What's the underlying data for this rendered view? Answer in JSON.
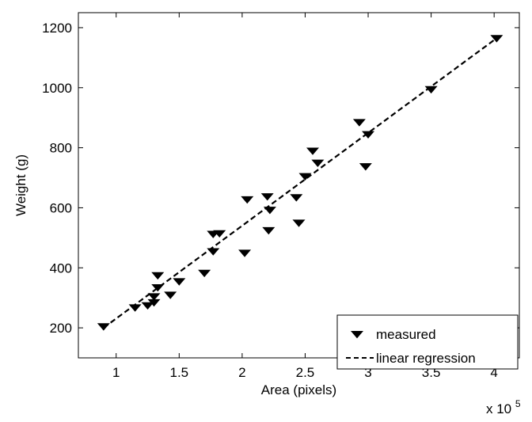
{
  "chart_data": {
    "type": "scatter",
    "xlabel": "Area (pixels)",
    "ylabel": "Weight (g)",
    "x_multiplier_label": "x 10",
    "x_multiplier_exponent": "5",
    "xlim": [
      0.7,
      4.2
    ],
    "ylim": [
      100,
      1250
    ],
    "xticks": [
      1,
      1.5,
      2,
      2.5,
      3,
      3.5,
      4
    ],
    "xtick_labels": [
      "1",
      "1.5",
      "2",
      "2.5",
      "3",
      "3.5",
      "4"
    ],
    "yticks": [
      200,
      400,
      600,
      800,
      1000,
      1200
    ],
    "ytick_labels": [
      "200",
      "400",
      "600",
      "800",
      "1000",
      "1200"
    ],
    "grid": false,
    "legend_position": "bottom-right",
    "series": [
      {
        "name": "measured",
        "marker": "triangle-down",
        "color": "#000000",
        "points": [
          [
            0.9,
            205
          ],
          [
            1.15,
            268
          ],
          [
            1.25,
            275
          ],
          [
            1.3,
            285
          ],
          [
            1.3,
            305
          ],
          [
            1.33,
            335
          ],
          [
            1.33,
            375
          ],
          [
            1.43,
            310
          ],
          [
            1.5,
            355
          ],
          [
            1.7,
            383
          ],
          [
            1.77,
            455
          ],
          [
            1.77,
            513
          ],
          [
            1.82,
            515
          ],
          [
            2.02,
            450
          ],
          [
            2.04,
            628
          ],
          [
            2.2,
            638
          ],
          [
            2.21,
            525
          ],
          [
            2.22,
            593
          ],
          [
            2.43,
            635
          ],
          [
            2.45,
            550
          ],
          [
            2.5,
            705
          ],
          [
            2.56,
            790
          ],
          [
            2.6,
            750
          ],
          [
            2.93,
            885
          ],
          [
            2.98,
            738
          ],
          [
            3.0,
            845
          ],
          [
            3.5,
            995
          ],
          [
            4.02,
            1165
          ]
        ]
      },
      {
        "name": "linear regression",
        "type": "line",
        "style": "dashed",
        "color": "#000000",
        "points": [
          [
            0.9,
            200
          ],
          [
            4.02,
            1165
          ]
        ]
      }
    ]
  }
}
